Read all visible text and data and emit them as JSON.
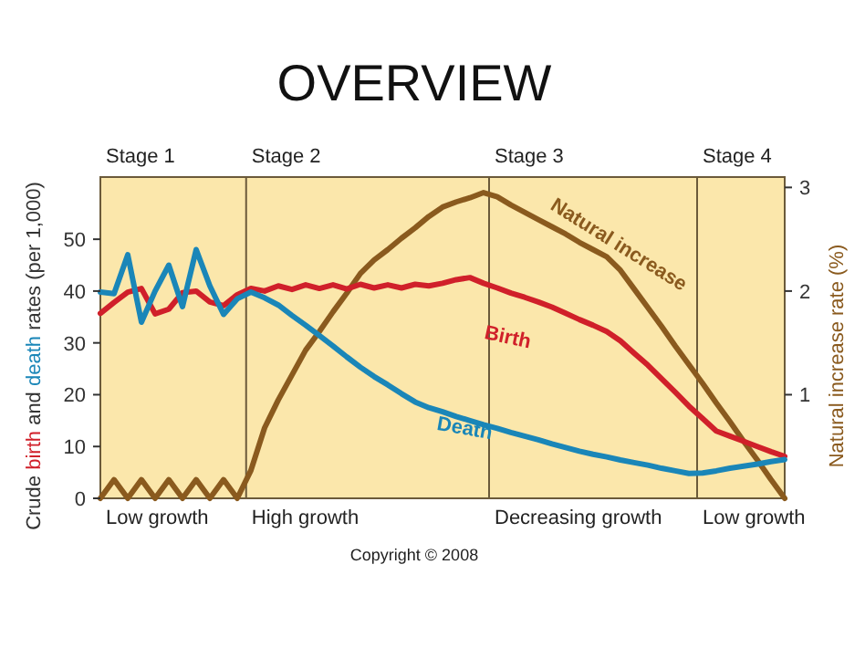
{
  "chart_data": {
    "type": "line",
    "title": "OVERVIEW",
    "ylabel": "Crude birth and death rates (per 1,000)",
    "y2label": "Natural increase rate (%)",
    "categories": [
      null,
      null,
      null,
      null,
      null,
      null,
      null,
      null,
      null,
      null,
      null,
      null,
      null,
      null,
      null,
      null,
      null,
      null,
      null,
      null,
      null,
      null,
      null,
      null,
      null,
      null,
      null,
      null,
      null,
      null,
      null,
      null,
      null,
      null,
      null,
      null,
      null,
      null,
      null,
      null,
      null,
      null,
      null,
      null,
      null,
      null,
      null,
      null,
      null,
      null,
      null
    ],
    "ylim": [
      0,
      62
    ],
    "yticks": [
      0,
      10,
      20,
      30,
      40,
      50
    ],
    "y2lim": [
      0,
      3.1
    ],
    "y2ticks": [
      1,
      2,
      3
    ],
    "tick_labels": "y",
    "marker": "none",
    "line_style": "solid",
    "annotations": [
      "Stage 1",
      "Stage 2",
      "Stage 3",
      "Stage 4",
      "Low growth",
      "High growth",
      "Decreasing growth",
      "Low growth",
      "Copyright © 2008"
    ],
    "series": [
      {
        "name": "Natural increase",
        "color": "#8a5a1e",
        "axis": "y2",
        "values": [
          0,
          0.18,
          0,
          0.18,
          0,
          0.18,
          0,
          0.18,
          0,
          0.18,
          0,
          0.27,
          0.68,
          0.95,
          1.19,
          1.43,
          1.61,
          1.8,
          1.98,
          2.17,
          2.3,
          2.4,
          2.51,
          2.61,
          2.72,
          2.81,
          2.86,
          2.9,
          2.95,
          2.91,
          2.83,
          2.76,
          2.69,
          2.62,
          2.55,
          2.47,
          2.4,
          2.33,
          2.2,
          2.02,
          1.84,
          1.66,
          1.47,
          1.29,
          1.11,
          0.92,
          0.74,
          0.55,
          0.37,
          0.18,
          0
        ]
      },
      {
        "name": "Birth",
        "color": "#d0202a",
        "values": [
          35.7,
          37.8,
          39.8,
          40.5,
          35.6,
          36.5,
          39.7,
          40,
          37.9,
          37.2,
          39.3,
          40.5,
          40,
          41,
          40.3,
          41.2,
          40.5,
          41.2,
          40.4,
          41.3,
          40.6,
          41.2,
          40.6,
          41.3,
          41,
          41.5,
          42.2,
          42.6,
          41.5,
          40.6,
          39.6,
          38.8,
          37.9,
          36.9,
          35.7,
          34.5,
          33.4,
          32.2,
          30.4,
          28,
          25.7,
          23.1,
          20.5,
          17.8,
          15.4,
          13,
          12,
          11,
          10,
          9,
          8.1
        ]
      },
      {
        "name": "Death",
        "color": "#1a86b8",
        "values": [
          39.8,
          39.5,
          47,
          34,
          40,
          45,
          37,
          48,
          41,
          35.5,
          38.5,
          39.8,
          38.7,
          37.3,
          35.3,
          33.4,
          31.4,
          29.4,
          27.3,
          25.3,
          23.5,
          21.9,
          20.2,
          18.6,
          17.5,
          16.7,
          15.8,
          15,
          14.2,
          13.5,
          12.7,
          12,
          11.3,
          10.5,
          9.8,
          9.1,
          8.5,
          8,
          7.4,
          6.9,
          6.4,
          5.8,
          5.3,
          4.8,
          4.9,
          5.3,
          5.8,
          6.2,
          6.6,
          7.1,
          7.5
        ]
      }
    ]
  }
}
